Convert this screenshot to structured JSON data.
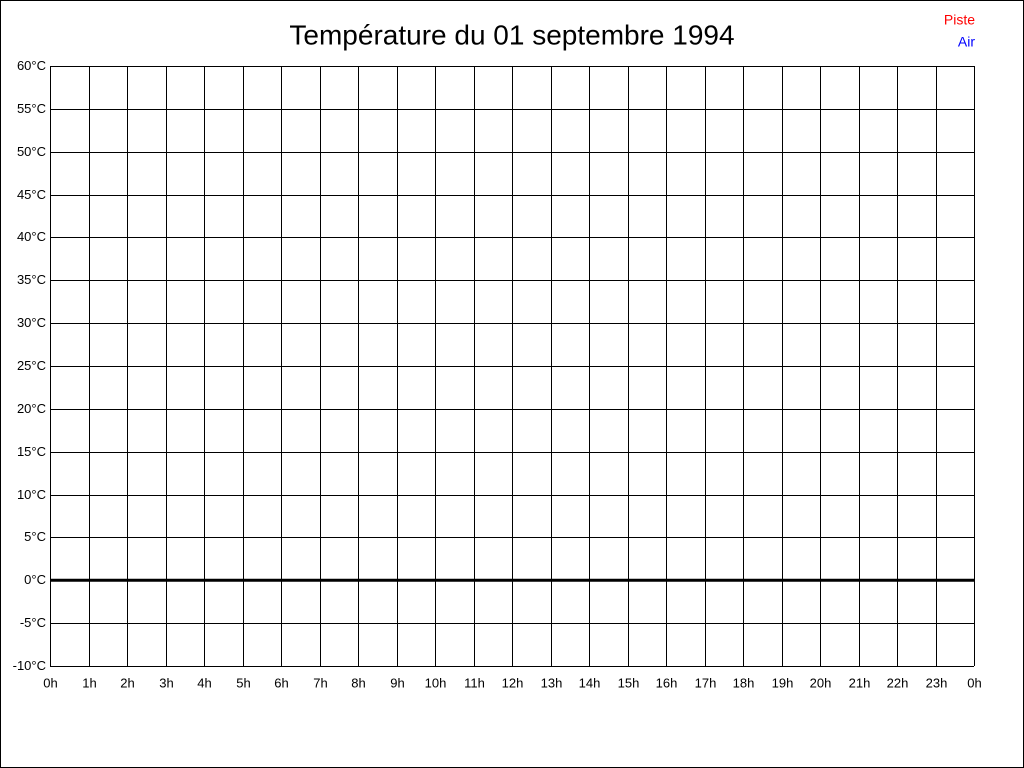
{
  "chart_data": {
    "type": "line",
    "title": "Température du 01 septembre 1994",
    "categories": [
      "0h",
      "1h",
      "2h",
      "3h",
      "4h",
      "5h",
      "6h",
      "7h",
      "8h",
      "9h",
      "10h",
      "11h",
      "12h",
      "13h",
      "14h",
      "15h",
      "16h",
      "17h",
      "18h",
      "19h",
      "20h",
      "21h",
      "22h",
      "23h",
      "0h"
    ],
    "series": [
      {
        "name": "Piste",
        "color": "#ff0000",
        "values": [
          null,
          null,
          null,
          null,
          null,
          null,
          null,
          null,
          null,
          null,
          null,
          null,
          null,
          null,
          null,
          null,
          null,
          null,
          null,
          null,
          null,
          null,
          null,
          null,
          null
        ]
      },
      {
        "name": "Air",
        "color": "#0000ff",
        "values": [
          null,
          null,
          null,
          null,
          null,
          null,
          null,
          null,
          null,
          null,
          null,
          null,
          null,
          null,
          null,
          null,
          null,
          null,
          null,
          null,
          null,
          null,
          null,
          null,
          null
        ]
      }
    ],
    "ylim": [
      -10,
      60
    ],
    "yticks": [
      {
        "value": -10,
        "label": "-10°C"
      },
      {
        "value": -5,
        "label": "-5°C"
      },
      {
        "value": 0,
        "label": "0°C"
      },
      {
        "value": 5,
        "label": "5°C"
      },
      {
        "value": 10,
        "label": "10°C"
      },
      {
        "value": 15,
        "label": "15°C"
      },
      {
        "value": 20,
        "label": "20°C"
      },
      {
        "value": 25,
        "label": "25°C"
      },
      {
        "value": 30,
        "label": "30°C"
      },
      {
        "value": 35,
        "label": "35°C"
      },
      {
        "value": 40,
        "label": "40°C"
      },
      {
        "value": 45,
        "label": "45°C"
      },
      {
        "value": 50,
        "label": "50°C"
      },
      {
        "value": 55,
        "label": "55°C"
      },
      {
        "value": 60,
        "label": "60°C"
      }
    ],
    "grid": true,
    "zero_line": true,
    "legend": "top-right"
  }
}
